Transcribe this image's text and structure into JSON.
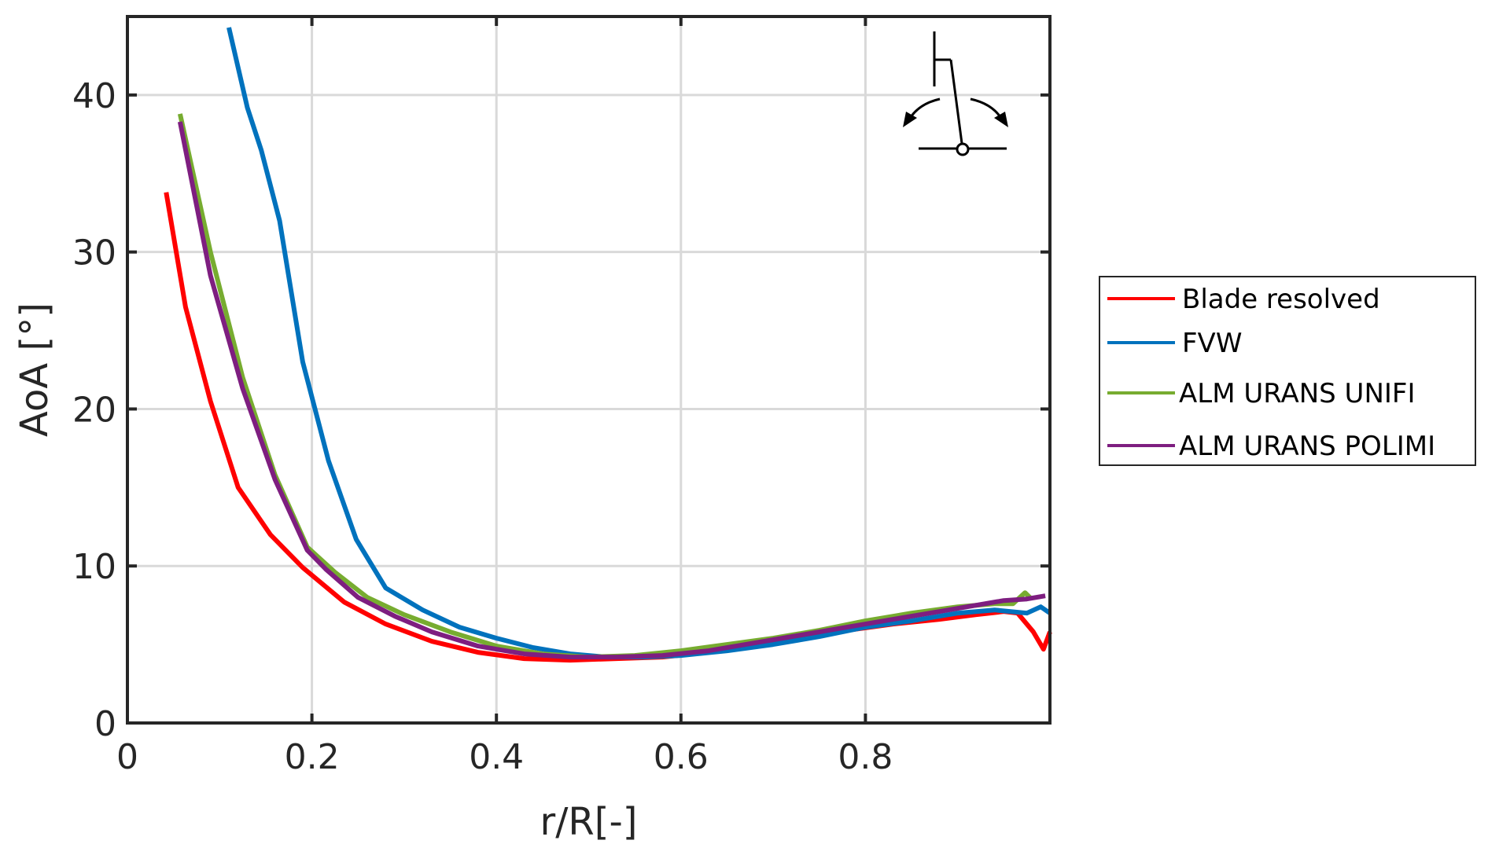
{
  "chart_data": {
    "type": "line",
    "xlabel": "r/R[-]",
    "ylabel": "AoA [°]",
    "xlim": [
      0,
      1.0
    ],
    "ylim": [
      0,
      45
    ],
    "xticks": [
      0,
      0.2,
      0.4,
      0.6,
      0.8
    ],
    "yticks": [
      0,
      10,
      20,
      30,
      40
    ],
    "xtick_labels": [
      "0",
      "0.2",
      "0.4",
      "0.6",
      "0.8"
    ],
    "ytick_labels": [
      "0",
      "10",
      "20",
      "30",
      "40"
    ],
    "grid": true,
    "legend_position": "outside-right",
    "series": [
      {
        "name": "Blade resolved",
        "color": "#ff0000",
        "points": [
          [
            0.042,
            33.8
          ],
          [
            0.063,
            26.5
          ],
          [
            0.09,
            20.5
          ],
          [
            0.12,
            15.0
          ],
          [
            0.155,
            12.0
          ],
          [
            0.19,
            9.9
          ],
          [
            0.235,
            7.7
          ],
          [
            0.28,
            6.3
          ],
          [
            0.33,
            5.2
          ],
          [
            0.38,
            4.5
          ],
          [
            0.43,
            4.1
          ],
          [
            0.48,
            4.0
          ],
          [
            0.53,
            4.1
          ],
          [
            0.58,
            4.2
          ],
          [
            0.63,
            4.5
          ],
          [
            0.68,
            4.9
          ],
          [
            0.73,
            5.4
          ],
          [
            0.78,
            5.9
          ],
          [
            0.83,
            6.3
          ],
          [
            0.88,
            6.6
          ],
          [
            0.92,
            6.9
          ],
          [
            0.95,
            7.1
          ],
          [
            0.965,
            7.0
          ],
          [
            0.982,
            5.8
          ],
          [
            0.993,
            4.7
          ],
          [
            1.0,
            5.8
          ]
        ]
      },
      {
        "name": "FVW",
        "color": "#0072bd",
        "points": [
          [
            0.11,
            44.3
          ],
          [
            0.13,
            39.2
          ],
          [
            0.145,
            36.5
          ],
          [
            0.165,
            32.0
          ],
          [
            0.19,
            23.0
          ],
          [
            0.218,
            16.7
          ],
          [
            0.248,
            11.7
          ],
          [
            0.28,
            8.6
          ],
          [
            0.32,
            7.2
          ],
          [
            0.36,
            6.1
          ],
          [
            0.4,
            5.4
          ],
          [
            0.44,
            4.8
          ],
          [
            0.48,
            4.4
          ],
          [
            0.52,
            4.2
          ],
          [
            0.56,
            4.2
          ],
          [
            0.6,
            4.3
          ],
          [
            0.65,
            4.6
          ],
          [
            0.7,
            5.0
          ],
          [
            0.75,
            5.5
          ],
          [
            0.8,
            6.1
          ],
          [
            0.85,
            6.5
          ],
          [
            0.9,
            7.0
          ],
          [
            0.94,
            7.2
          ],
          [
            0.975,
            7.0
          ],
          [
            0.99,
            7.4
          ],
          [
            1.0,
            7.0
          ]
        ]
      },
      {
        "name": "ALM URANS UNIFI",
        "color": "#77ac30",
        "points": [
          [
            0.057,
            38.8
          ],
          [
            0.09,
            30.0
          ],
          [
            0.125,
            22.0
          ],
          [
            0.16,
            15.8
          ],
          [
            0.195,
            11.2
          ],
          [
            0.225,
            9.6
          ],
          [
            0.26,
            8.0
          ],
          [
            0.3,
            6.9
          ],
          [
            0.35,
            5.8
          ],
          [
            0.4,
            4.9
          ],
          [
            0.45,
            4.4
          ],
          [
            0.5,
            4.2
          ],
          [
            0.55,
            4.3
          ],
          [
            0.6,
            4.6
          ],
          [
            0.65,
            5.0
          ],
          [
            0.7,
            5.4
          ],
          [
            0.75,
            5.9
          ],
          [
            0.8,
            6.5
          ],
          [
            0.85,
            7.0
          ],
          [
            0.9,
            7.4
          ],
          [
            0.94,
            7.6
          ],
          [
            0.96,
            7.6
          ],
          [
            0.973,
            8.3
          ],
          [
            0.98,
            7.9
          ]
        ]
      },
      {
        "name": "ALM URANS POLIMI",
        "color": "#7e1e80",
        "points": [
          [
            0.057,
            38.3
          ],
          [
            0.09,
            28.5
          ],
          [
            0.125,
            21.3
          ],
          [
            0.16,
            15.5
          ],
          [
            0.195,
            11.0
          ],
          [
            0.215,
            9.8
          ],
          [
            0.25,
            8.0
          ],
          [
            0.29,
            6.8
          ],
          [
            0.33,
            5.8
          ],
          [
            0.38,
            4.9
          ],
          [
            0.43,
            4.4
          ],
          [
            0.48,
            4.2
          ],
          [
            0.53,
            4.2
          ],
          [
            0.58,
            4.3
          ],
          [
            0.63,
            4.6
          ],
          [
            0.68,
            5.1
          ],
          [
            0.73,
            5.6
          ],
          [
            0.78,
            6.1
          ],
          [
            0.83,
            6.6
          ],
          [
            0.88,
            7.1
          ],
          [
            0.92,
            7.5
          ],
          [
            0.95,
            7.8
          ],
          [
            0.975,
            7.9
          ],
          [
            0.995,
            8.1
          ]
        ]
      }
    ]
  }
}
